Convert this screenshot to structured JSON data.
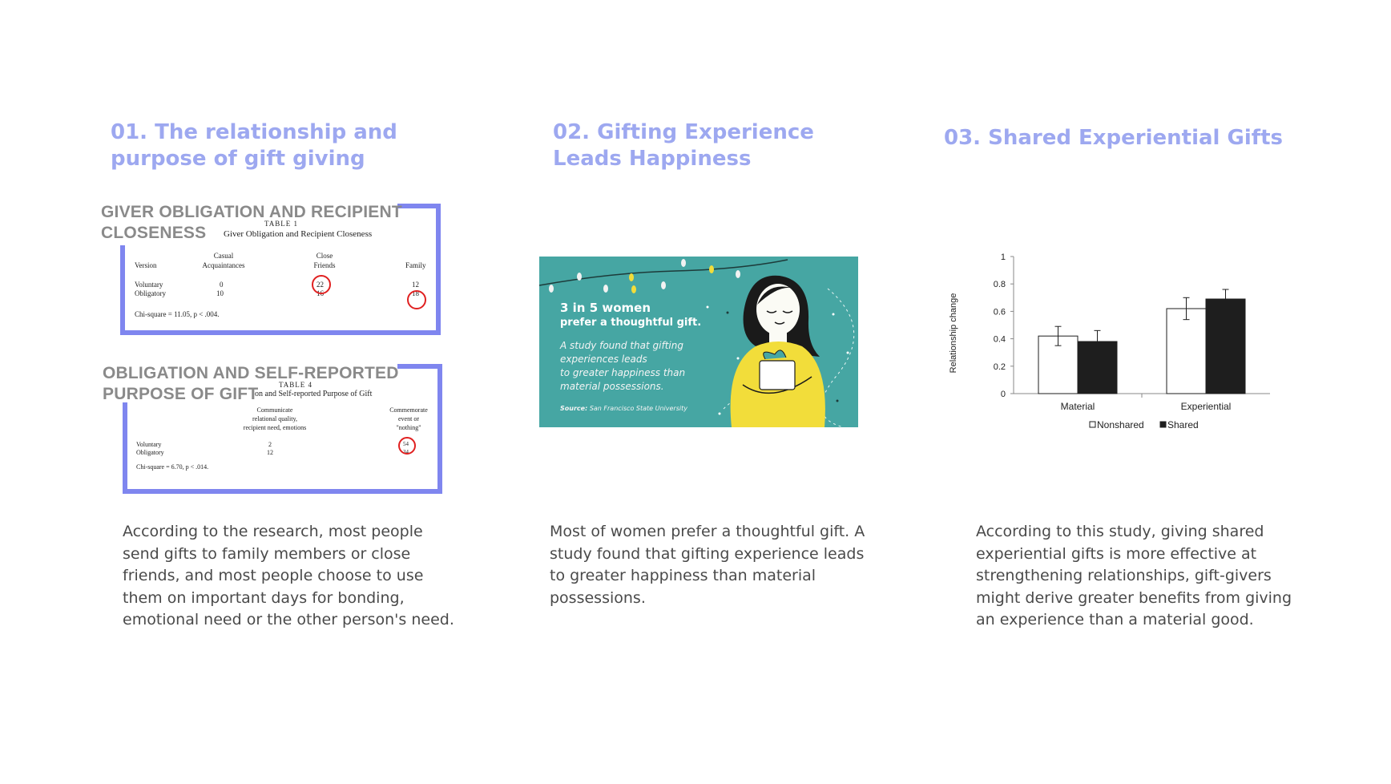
{
  "columns": [
    {
      "heading_line1": "01.  The relationship and",
      "heading_line2": "purpose of gift giving",
      "description": "According to the research, most people send gifts to family members or close friends, and most people choose to use them on important days for bonding, emotional need or the other person's need."
    },
    {
      "heading_line1": "02. Gifting Experience",
      "heading_line2": "Leads Happiness",
      "description": "Most of women prefer a thoughtful gift. A study found that gifting experience leads to greater happiness than material possessions."
    },
    {
      "heading_line1": "03. Shared Experiential Gifts",
      "description": "According to this study, giving shared experiential gifts is more effective at strengthening relationships, gift-givers might derive greater benefits from giving an experience than a material good."
    }
  ],
  "table1": {
    "overlay_line1": "GIVER OBLIGATION  AND RECIPIENT",
    "overlay_line2": "CLOSENESS",
    "label": "TABLE 1",
    "title": "Giver Obligation and Recipient Closeness",
    "col_version": "Version",
    "col_casual_1": "Casual",
    "col_casual_2": "Acquaintances",
    "col_close_1": "Close",
    "col_close_2": "Friends",
    "col_family": "Family",
    "rows": [
      {
        "version": "Voluntary",
        "casual": "0",
        "close": "22",
        "family": "12"
      },
      {
        "version": "Obligatory",
        "casual": "10",
        "close": "16",
        "family": "18"
      }
    ],
    "stat": "Chi-square = 11.05, p < .004."
  },
  "table4": {
    "overlay_line1": "OBLIGATION  AND SELF-REPORTED",
    "overlay_line2": "PURPOSE OF GIFT",
    "label": "TABLE 4",
    "title": "on and Self-reported Purpose of Gift",
    "col_comm_1": "Communicate",
    "col_comm_2": "relational quality,",
    "col_comm_3": "recipient need, emotions",
    "col_comm2_1": "Commemorate",
    "col_comm2_2": "event or",
    "col_comm2_3": "\"nothing\"",
    "rows": [
      {
        "version": "Voluntary",
        "communicate": "2",
        "commemorate": "54"
      },
      {
        "version": "Obligatory",
        "communicate": "12",
        "commemorate": "34"
      }
    ],
    "stat": "Chi-square = 6.70, p < .014."
  },
  "promo": {
    "title_line1": "3 in 5 women",
    "title_line2": "prefer a thoughtful gift.",
    "body_line1": "A study found that gifting",
    "body_line2": "experiences leads",
    "body_line3": "to greater happiness than",
    "body_line4": "material possessions.",
    "source_label": "Source:",
    "source_value": "San Francisco State University",
    "bg_color": "#46a6a3",
    "accent_yellow": "#f2dd3a"
  },
  "chart_data": {
    "type": "bar",
    "categories": [
      "Material",
      "Experiential"
    ],
    "series": [
      {
        "name": "Nonshared",
        "values": [
          0.42,
          0.62
        ],
        "errors": [
          0.07,
          0.08
        ],
        "color": "#ffffff"
      },
      {
        "name": "Shared",
        "values": [
          0.38,
          0.69
        ],
        "errors": [
          0.08,
          0.07
        ],
        "color": "#1e1e1e"
      }
    ],
    "ylabel": "Relationship change",
    "xlabel": "",
    "ylim": [
      0,
      1
    ],
    "yticks": [
      "0",
      "0.2",
      "0.4",
      "0.6",
      "0.8",
      "1"
    ],
    "legend_position": "bottom",
    "grid": false
  }
}
